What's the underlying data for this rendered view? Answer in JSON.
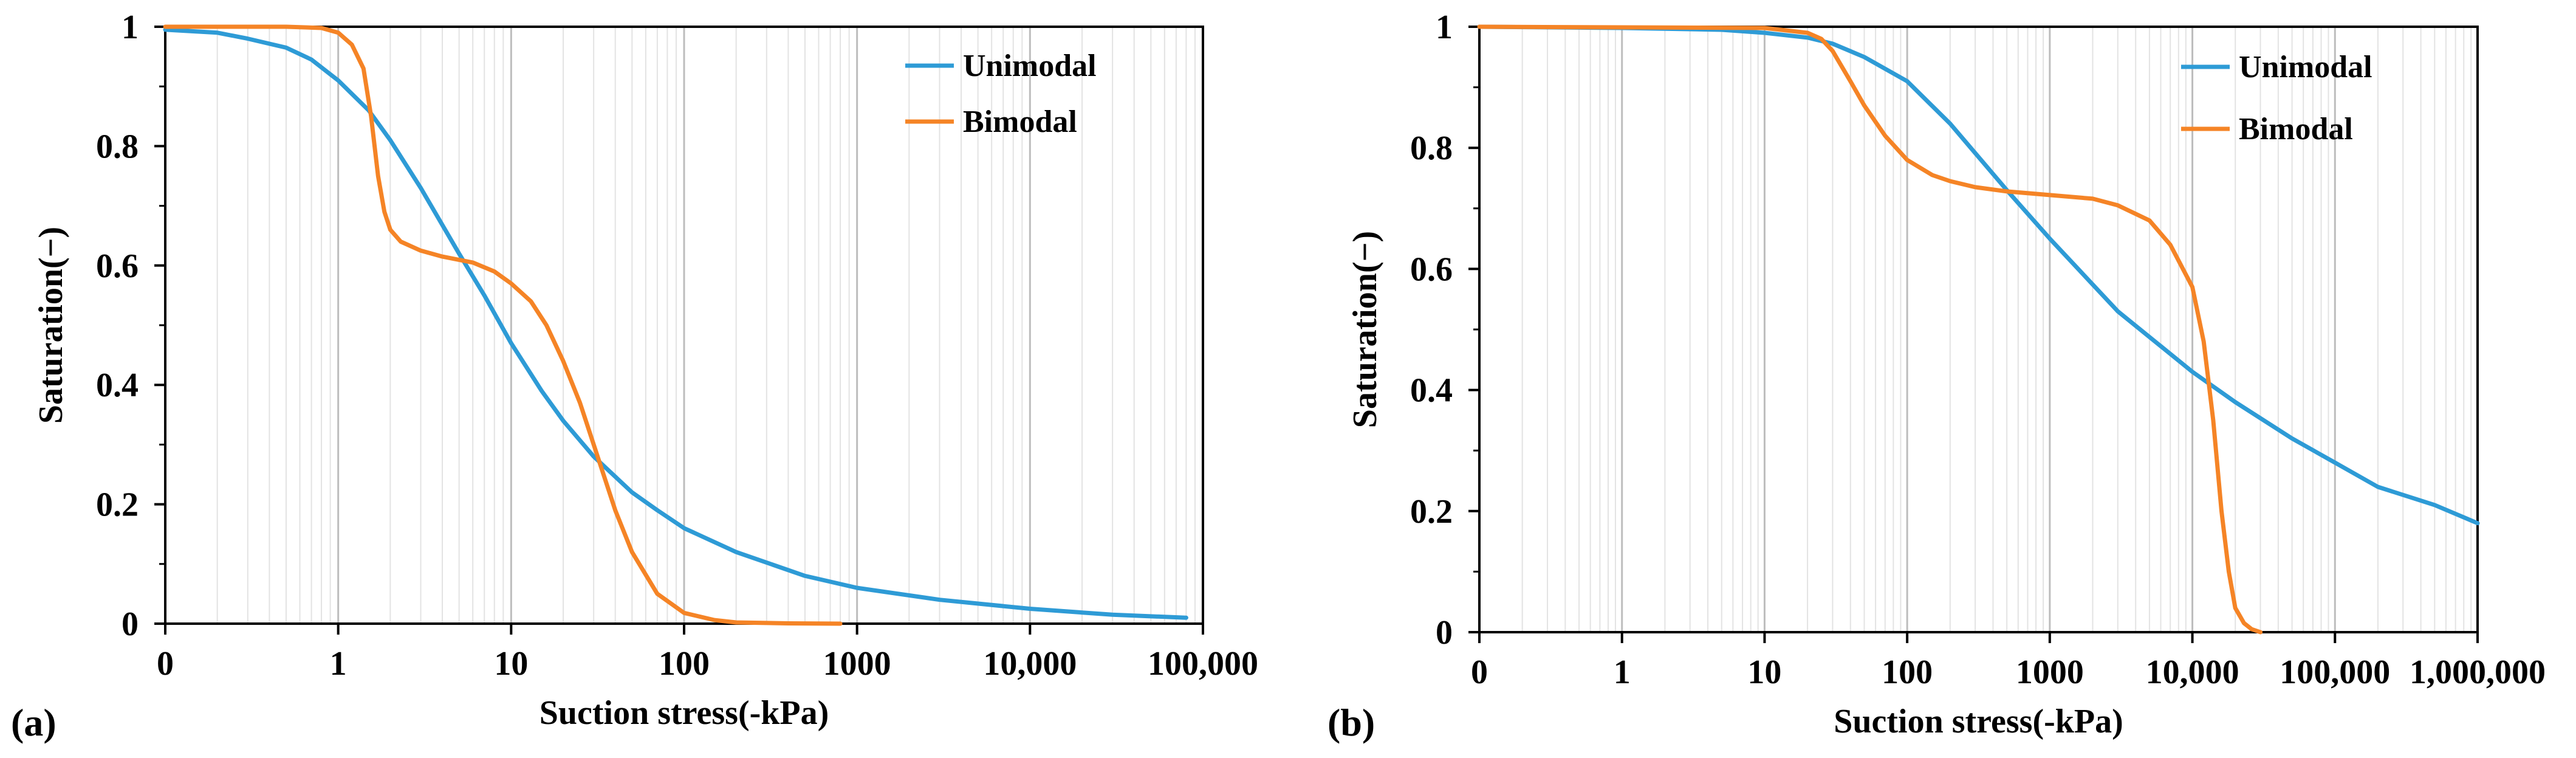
{
  "chart_data": [
    {
      "panel": "(a)",
      "type": "line",
      "xscale": "log",
      "xlabel": "Suction stress(-kPa)",
      "ylabel": "Saturation(−)",
      "xticks": [
        "0",
        "1",
        "10",
        "100",
        "1000",
        "10,000",
        "100,000"
      ],
      "yticks": [
        "0",
        "0.2",
        "0.4",
        "0.6",
        "0.8",
        "1"
      ],
      "ylim": [
        0,
        1
      ],
      "xlim": [
        0.1,
        100000
      ],
      "legend_position": "top-right",
      "grid": "vertical-minor",
      "series": [
        {
          "name": "Unimodal",
          "color": "#2E9BD6",
          "x": [
            0.1,
            0.2,
            0.3,
            0.5,
            0.7,
            1,
            1.5,
            2,
            3,
            5,
            7,
            10,
            15,
            20,
            30,
            50,
            70,
            100,
            200,
            500,
            1000,
            3000,
            10000,
            30000,
            80000
          ],
          "y": [
            0.995,
            0.99,
            0.98,
            0.965,
            0.945,
            0.91,
            0.86,
            0.81,
            0.73,
            0.62,
            0.55,
            0.47,
            0.39,
            0.34,
            0.28,
            0.22,
            0.19,
            0.16,
            0.12,
            0.08,
            0.06,
            0.04,
            0.025,
            0.015,
            0.01
          ]
        },
        {
          "name": "Bimodal",
          "color": "#F58426",
          "x": [
            0.1,
            0.5,
            0.8,
            1,
            1.2,
            1.4,
            1.55,
            1.7,
            1.85,
            2,
            2.3,
            3,
            4,
            6,
            8,
            10,
            13,
            16,
            20,
            25,
            30,
            40,
            50,
            70,
            100,
            150,
            200,
            400,
            800
          ],
          "y": [
            1,
            1,
            0.998,
            0.99,
            0.97,
            0.93,
            0.85,
            0.75,
            0.69,
            0.66,
            0.64,
            0.625,
            0.615,
            0.605,
            0.59,
            0.57,
            0.54,
            0.5,
            0.44,
            0.37,
            0.3,
            0.19,
            0.12,
            0.05,
            0.018,
            0.006,
            0.002,
            0.0005,
            0
          ]
        }
      ]
    },
    {
      "panel": "(b)",
      "type": "line",
      "xscale": "log",
      "xlabel": "Suction stress(-kPa)",
      "ylabel": "Saturation(−)",
      "xticks": [
        "0",
        "1",
        "10",
        "100",
        "1000",
        "10,000",
        "100,000",
        "1,000,000"
      ],
      "yticks": [
        "0",
        "0.2",
        "0.4",
        "0.6",
        "0.8",
        "1"
      ],
      "ylim": [
        0,
        1
      ],
      "xlim": [
        0.1,
        1000000
      ],
      "legend_position": "top-right",
      "grid": "vertical-minor",
      "series": [
        {
          "name": "Unimodal",
          "color": "#2E9BD6",
          "x": [
            0.1,
            1,
            5,
            10,
            20,
            30,
            50,
            100,
            200,
            500,
            1000,
            3000,
            10000,
            20000,
            50000,
            100000,
            200000,
            500000,
            1000000
          ],
          "y": [
            1,
            0.998,
            0.995,
            0.99,
            0.982,
            0.972,
            0.95,
            0.91,
            0.84,
            0.73,
            0.65,
            0.53,
            0.43,
            0.38,
            0.32,
            0.28,
            0.24,
            0.21,
            0.18
          ]
        },
        {
          "name": "Bimodal",
          "color": "#F58426",
          "x": [
            0.1,
            10,
            20,
            25,
            30,
            40,
            50,
            70,
            100,
            150,
            200,
            300,
            500,
            1000,
            2000,
            3000,
            5000,
            7000,
            10000,
            12000,
            14000,
            16000,
            18000,
            20000,
            23000,
            26000,
            30000
          ],
          "y": [
            1,
            0.998,
            0.99,
            0.98,
            0.96,
            0.91,
            0.87,
            0.82,
            0.78,
            0.755,
            0.745,
            0.735,
            0.728,
            0.722,
            0.716,
            0.705,
            0.68,
            0.64,
            0.57,
            0.48,
            0.35,
            0.2,
            0.1,
            0.04,
            0.015,
            0.005,
            0
          ]
        }
      ]
    }
  ]
}
